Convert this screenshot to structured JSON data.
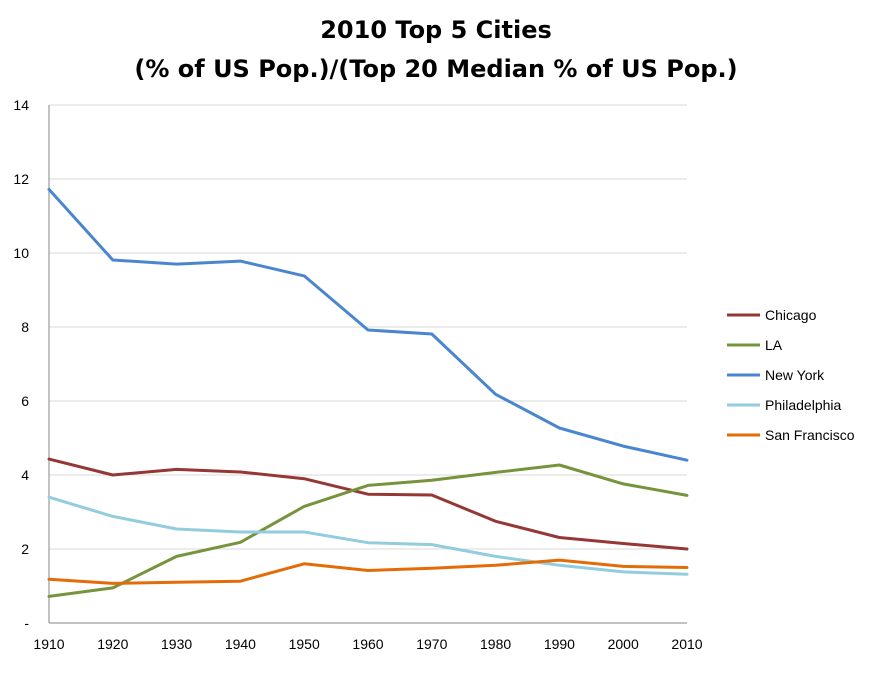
{
  "chart_data": {
    "type": "line",
    "title_lines": [
      "2010 Top 5 Cities",
      "(% of US Pop.)/(Top 20 Median % of US Pop.)"
    ],
    "x": [
      1910,
      1920,
      1930,
      1940,
      1950,
      1960,
      1970,
      1980,
      1990,
      2000,
      2010
    ],
    "xlim": [
      1910,
      2010
    ],
    "ylim": [
      0,
      14
    ],
    "y_ticks": [
      0,
      2,
      4,
      6,
      8,
      10,
      12,
      14
    ],
    "y_tick_labels": [
      "-",
      "2",
      "4",
      "6",
      "8",
      "10",
      "12",
      "14"
    ],
    "grid": true,
    "legend_position": "right",
    "series": [
      {
        "name": "Chicago",
        "color": "#953735",
        "values": [
          4.43,
          4.0,
          4.15,
          4.08,
          3.9,
          3.48,
          3.46,
          2.75,
          2.31,
          2.15,
          2.0
        ]
      },
      {
        "name": "LA",
        "color": "#77933c",
        "values": [
          0.72,
          0.95,
          1.8,
          2.18,
          3.15,
          3.72,
          3.86,
          4.07,
          4.27,
          3.76,
          3.45
        ]
      },
      {
        "name": "New York",
        "color": "#4a86cf",
        "values": [
          11.72,
          9.81,
          9.7,
          9.78,
          9.38,
          7.92,
          7.81,
          6.18,
          5.27,
          4.78,
          4.4
        ]
      },
      {
        "name": "Philadelphia",
        "color": "#93cddd",
        "values": [
          3.4,
          2.88,
          2.54,
          2.46,
          2.46,
          2.17,
          2.12,
          1.8,
          1.56,
          1.38,
          1.32
        ]
      },
      {
        "name": "San Francisco",
        "color": "#e36c09",
        "values": [
          1.18,
          1.07,
          1.1,
          1.13,
          1.6,
          1.42,
          1.48,
          1.56,
          1.7,
          1.53,
          1.5
        ]
      }
    ]
  }
}
